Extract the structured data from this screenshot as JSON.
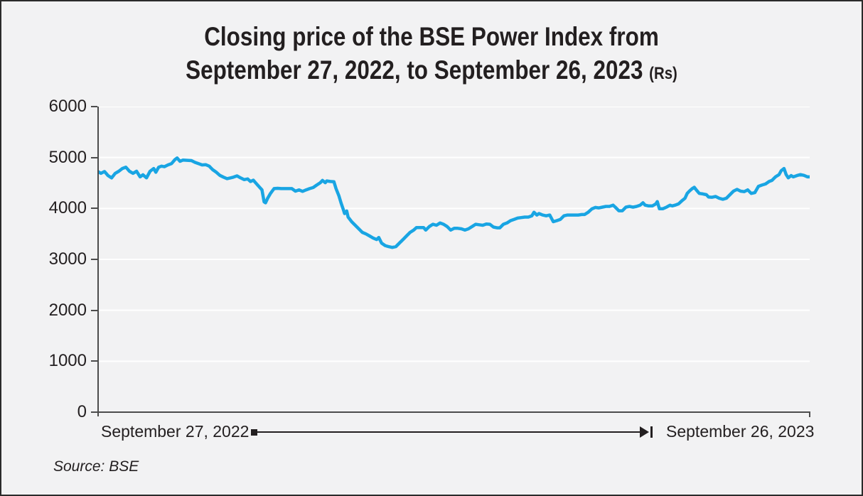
{
  "title": {
    "line1": "Closing price of the BSE Power Index from",
    "line2": "September 27, 2022, to September 26, 2023",
    "unit": "(Rs)"
  },
  "x_axis": {
    "start_label": "September 27, 2022",
    "end_label": "September 26, 2023"
  },
  "source_note": "Source: BSE",
  "colors": {
    "background": "#f2f2f3",
    "text": "#231f20",
    "axis": "#4c4c4c",
    "grid": "#ffffff",
    "line": "#19A5E3"
  },
  "chart_data": {
    "type": "line",
    "title": "Closing price of the BSE Power Index from September 27, 2022, to September 26, 2023 (Rs)",
    "series_name": "BSE Power Index closing price (Rs)",
    "xlabel": "",
    "ylabel": "",
    "x_range_labels": [
      "September 27, 2022",
      "September 26, 2023"
    ],
    "ylim": [
      0,
      6000
    ],
    "yticks": [
      0,
      1000,
      2000,
      3000,
      4000,
      5000,
      6000
    ],
    "grid": "horizontal-white-lines",
    "legend_position": "none",
    "points": [
      [
        0.0,
        4730
      ],
      [
        0.005,
        4690
      ],
      [
        0.01,
        4725
      ],
      [
        0.015,
        4645
      ],
      [
        0.02,
        4600
      ],
      [
        0.025,
        4690
      ],
      [
        0.03,
        4730
      ],
      [
        0.035,
        4785
      ],
      [
        0.04,
        4810
      ],
      [
        0.045,
        4730
      ],
      [
        0.05,
        4690
      ],
      [
        0.055,
        4730
      ],
      [
        0.06,
        4620
      ],
      [
        0.064,
        4660
      ],
      [
        0.069,
        4600
      ],
      [
        0.074,
        4730
      ],
      [
        0.079,
        4785
      ],
      [
        0.082,
        4710
      ],
      [
        0.086,
        4810
      ],
      [
        0.09,
        4830
      ],
      [
        0.094,
        4820
      ],
      [
        0.099,
        4855
      ],
      [
        0.104,
        4880
      ],
      [
        0.109,
        4960
      ],
      [
        0.112,
        4990
      ],
      [
        0.116,
        4925
      ],
      [
        0.12,
        4950
      ],
      [
        0.126,
        4945
      ],
      [
        0.132,
        4940
      ],
      [
        0.137,
        4905
      ],
      [
        0.142,
        4880
      ],
      [
        0.147,
        4855
      ],
      [
        0.152,
        4860
      ],
      [
        0.157,
        4830
      ],
      [
        0.162,
        4760
      ],
      [
        0.167,
        4710
      ],
      [
        0.172,
        4650
      ],
      [
        0.177,
        4615
      ],
      [
        0.182,
        4585
      ],
      [
        0.187,
        4600
      ],
      [
        0.191,
        4615
      ],
      [
        0.196,
        4640
      ],
      [
        0.201,
        4600
      ],
      [
        0.206,
        4565
      ],
      [
        0.211,
        4580
      ],
      [
        0.215,
        4530
      ],
      [
        0.219,
        4555
      ],
      [
        0.223,
        4490
      ],
      [
        0.228,
        4410
      ],
      [
        0.231,
        4365
      ],
      [
        0.234,
        4130
      ],
      [
        0.236,
        4110
      ],
      [
        0.239,
        4200
      ],
      [
        0.243,
        4295
      ],
      [
        0.248,
        4390
      ],
      [
        0.253,
        4395
      ],
      [
        0.258,
        4390
      ],
      [
        0.263,
        4390
      ],
      [
        0.268,
        4390
      ],
      [
        0.273,
        4390
      ],
      [
        0.278,
        4340
      ],
      [
        0.283,
        4365
      ],
      [
        0.288,
        4335
      ],
      [
        0.293,
        4365
      ],
      [
        0.298,
        4390
      ],
      [
        0.303,
        4410
      ],
      [
        0.308,
        4460
      ],
      [
        0.313,
        4505
      ],
      [
        0.316,
        4550
      ],
      [
        0.32,
        4505
      ],
      [
        0.322,
        4540
      ],
      [
        0.327,
        4530
      ],
      [
        0.332,
        4525
      ],
      [
        0.335,
        4390
      ],
      [
        0.339,
        4250
      ],
      [
        0.342,
        4110
      ],
      [
        0.345,
        3990
      ],
      [
        0.347,
        3900
      ],
      [
        0.35,
        3950
      ],
      [
        0.352,
        3830
      ],
      [
        0.357,
        3740
      ],
      [
        0.362,
        3670
      ],
      [
        0.367,
        3600
      ],
      [
        0.372,
        3530
      ],
      [
        0.377,
        3500
      ],
      [
        0.382,
        3460
      ],
      [
        0.387,
        3420
      ],
      [
        0.392,
        3390
      ],
      [
        0.395,
        3430
      ],
      [
        0.399,
        3320
      ],
      [
        0.404,
        3270
      ],
      [
        0.409,
        3250
      ],
      [
        0.414,
        3235
      ],
      [
        0.419,
        3250
      ],
      [
        0.424,
        3320
      ],
      [
        0.429,
        3390
      ],
      [
        0.434,
        3460
      ],
      [
        0.439,
        3530
      ],
      [
        0.444,
        3575
      ],
      [
        0.448,
        3625
      ],
      [
        0.453,
        3625
      ],
      [
        0.458,
        3625
      ],
      [
        0.461,
        3575
      ],
      [
        0.466,
        3645
      ],
      [
        0.471,
        3690
      ],
      [
        0.476,
        3670
      ],
      [
        0.481,
        3715
      ],
      [
        0.486,
        3690
      ],
      [
        0.491,
        3645
      ],
      [
        0.496,
        3575
      ],
      [
        0.501,
        3610
      ],
      [
        0.506,
        3610
      ],
      [
        0.511,
        3600
      ],
      [
        0.516,
        3575
      ],
      [
        0.521,
        3600
      ],
      [
        0.526,
        3645
      ],
      [
        0.531,
        3690
      ],
      [
        0.536,
        3680
      ],
      [
        0.541,
        3670
      ],
      [
        0.546,
        3695
      ],
      [
        0.551,
        3690
      ],
      [
        0.556,
        3635
      ],
      [
        0.561,
        3620
      ],
      [
        0.565,
        3620
      ],
      [
        0.57,
        3690
      ],
      [
        0.575,
        3715
      ],
      [
        0.58,
        3760
      ],
      [
        0.585,
        3785
      ],
      [
        0.59,
        3810
      ],
      [
        0.595,
        3820
      ],
      [
        0.6,
        3830
      ],
      [
        0.605,
        3830
      ],
      [
        0.61,
        3855
      ],
      [
        0.613,
        3925
      ],
      [
        0.617,
        3870
      ],
      [
        0.62,
        3900
      ],
      [
        0.625,
        3870
      ],
      [
        0.63,
        3855
      ],
      [
        0.635,
        3870
      ],
      [
        0.64,
        3740
      ],
      [
        0.645,
        3760
      ],
      [
        0.65,
        3785
      ],
      [
        0.655,
        3855
      ],
      [
        0.66,
        3870
      ],
      [
        0.665,
        3870
      ],
      [
        0.67,
        3870
      ],
      [
        0.675,
        3870
      ],
      [
        0.68,
        3880
      ],
      [
        0.684,
        3880
      ],
      [
        0.689,
        3925
      ],
      [
        0.694,
        3990
      ],
      [
        0.699,
        4020
      ],
      [
        0.704,
        4010
      ],
      [
        0.709,
        4025
      ],
      [
        0.714,
        4040
      ],
      [
        0.719,
        4040
      ],
      [
        0.724,
        4065
      ],
      [
        0.727,
        4025
      ],
      [
        0.732,
        3955
      ],
      [
        0.737,
        3955
      ],
      [
        0.742,
        4025
      ],
      [
        0.747,
        4040
      ],
      [
        0.752,
        4025
      ],
      [
        0.757,
        4040
      ],
      [
        0.762,
        4065
      ],
      [
        0.766,
        4110
      ],
      [
        0.769,
        4065
      ],
      [
        0.774,
        4050
      ],
      [
        0.779,
        4050
      ],
      [
        0.784,
        4090
      ],
      [
        0.786,
        4135
      ],
      [
        0.789,
        3995
      ],
      [
        0.794,
        3995
      ],
      [
        0.799,
        4025
      ],
      [
        0.804,
        4065
      ],
      [
        0.807,
        4050
      ],
      [
        0.811,
        4065
      ],
      [
        0.816,
        4090
      ],
      [
        0.821,
        4155
      ],
      [
        0.825,
        4200
      ],
      [
        0.828,
        4295
      ],
      [
        0.831,
        4340
      ],
      [
        0.835,
        4390
      ],
      [
        0.838,
        4415
      ],
      [
        0.841,
        4360
      ],
      [
        0.845,
        4295
      ],
      [
        0.85,
        4285
      ],
      [
        0.855,
        4270
      ],
      [
        0.858,
        4225
      ],
      [
        0.863,
        4220
      ],
      [
        0.868,
        4235
      ],
      [
        0.873,
        4200
      ],
      [
        0.878,
        4180
      ],
      [
        0.883,
        4200
      ],
      [
        0.888,
        4270
      ],
      [
        0.893,
        4340
      ],
      [
        0.898,
        4375
      ],
      [
        0.903,
        4340
      ],
      [
        0.908,
        4330
      ],
      [
        0.913,
        4365
      ],
      [
        0.918,
        4295
      ],
      [
        0.923,
        4310
      ],
      [
        0.928,
        4435
      ],
      [
        0.933,
        4460
      ],
      [
        0.938,
        4480
      ],
      [
        0.943,
        4530
      ],
      [
        0.947,
        4550
      ],
      [
        0.952,
        4620
      ],
      [
        0.957,
        4665
      ],
      [
        0.96,
        4740
      ],
      [
        0.964,
        4785
      ],
      [
        0.967,
        4665
      ],
      [
        0.97,
        4600
      ],
      [
        0.974,
        4645
      ],
      [
        0.977,
        4620
      ],
      [
        0.982,
        4645
      ],
      [
        0.987,
        4665
      ],
      [
        0.992,
        4650
      ],
      [
        0.997,
        4620
      ],
      [
        1.0,
        4620
      ]
    ]
  }
}
